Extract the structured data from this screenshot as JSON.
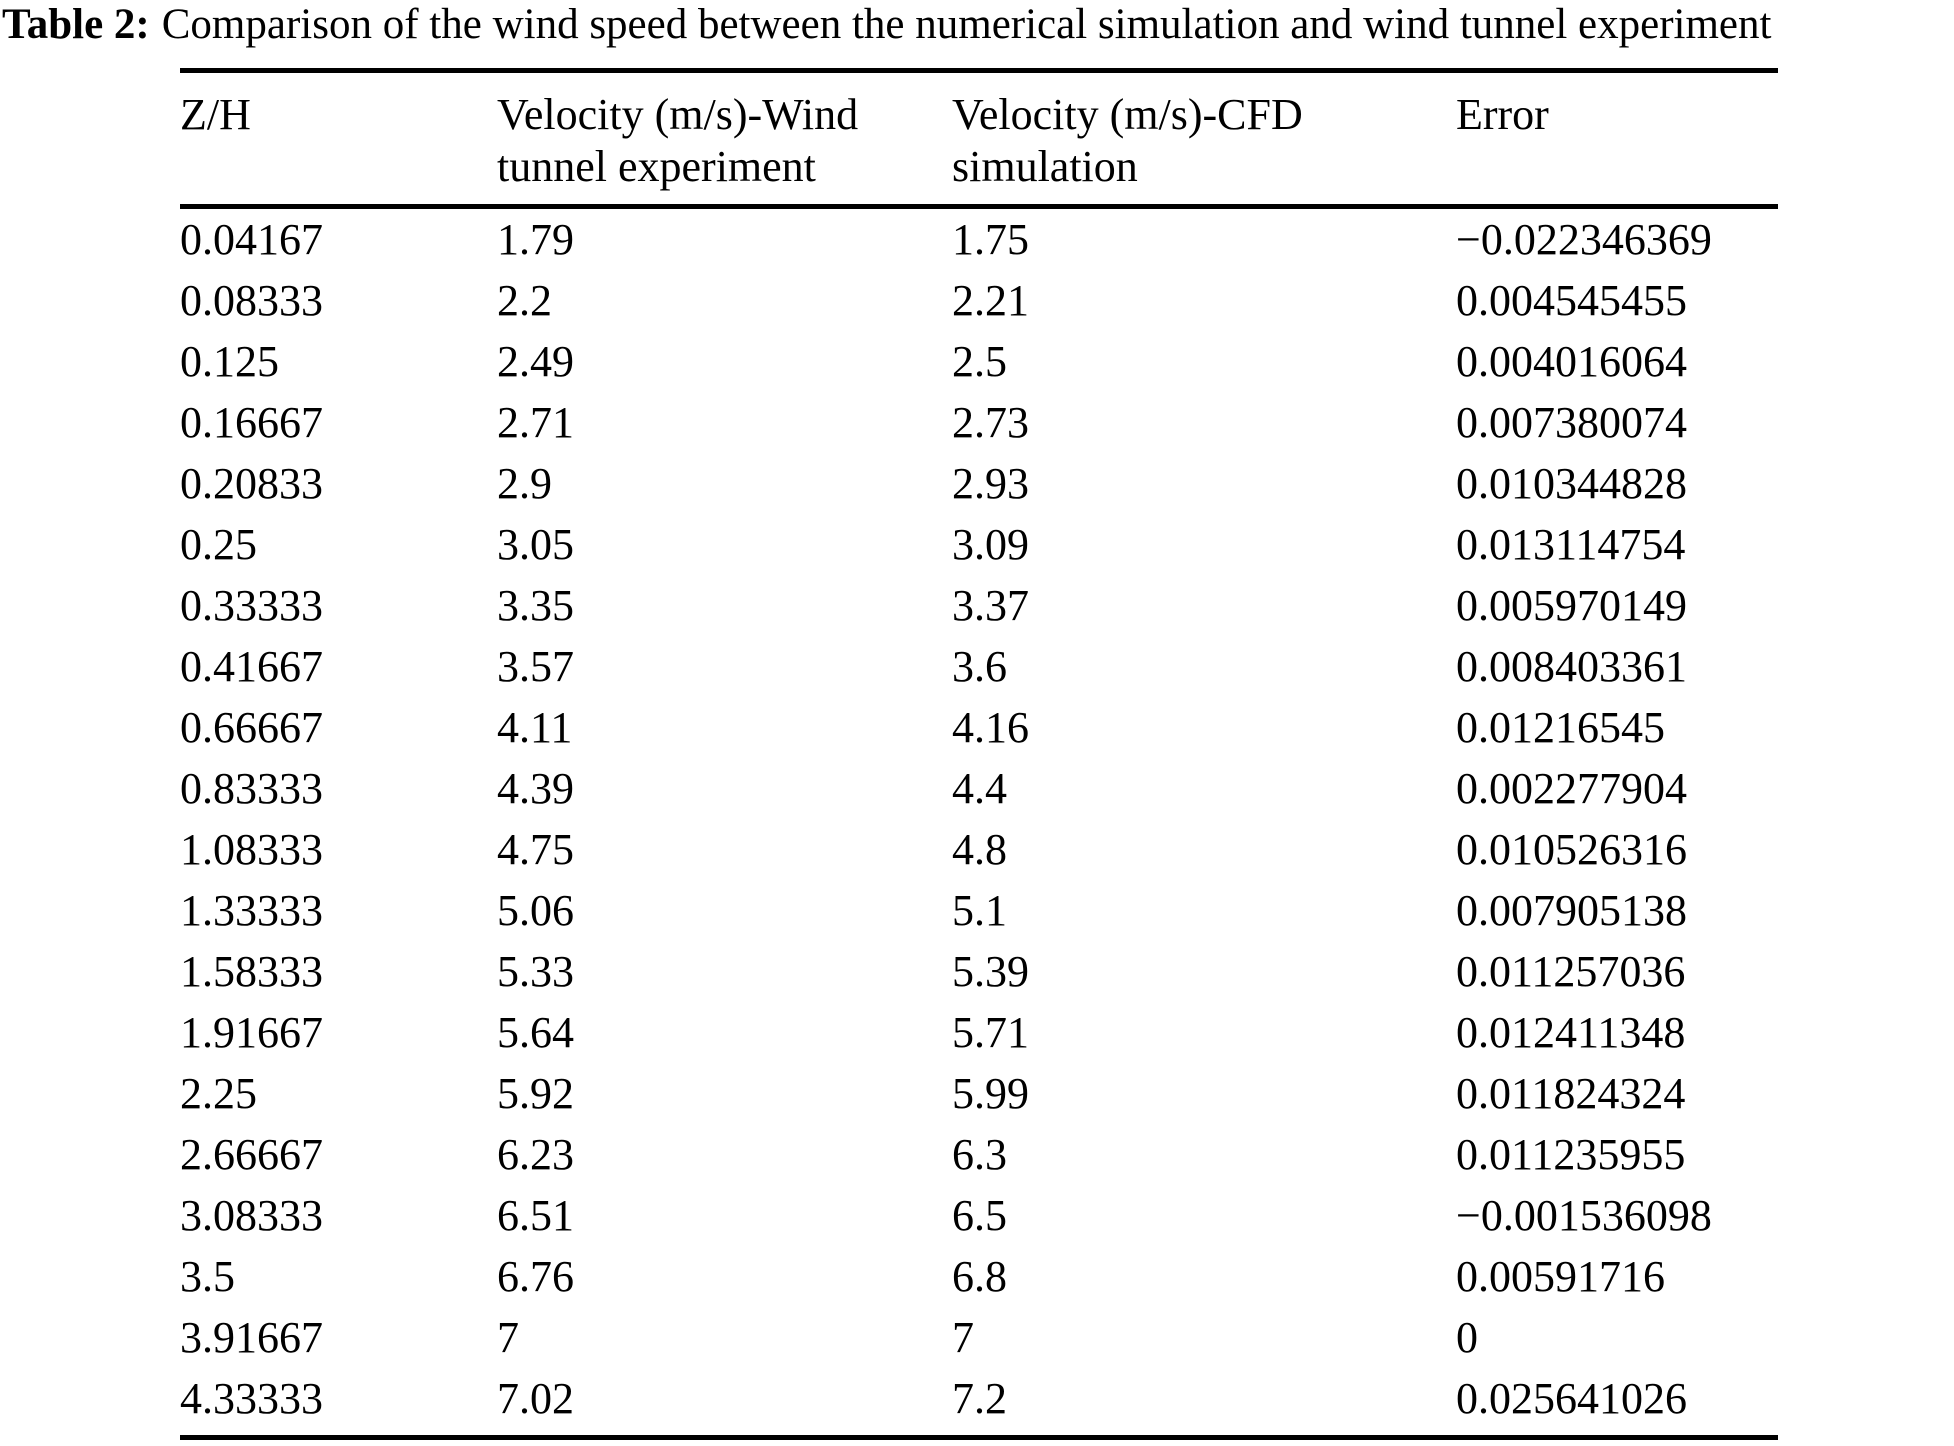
{
  "caption": {
    "label": "Table 2:",
    "text": "Comparison of the wind speed between the numerical simulation and wind tunnel experiment"
  },
  "table": {
    "columns": [
      "Z/H",
      "Velocity (m/s)-Wind\ntunnel experiment",
      "Velocity (m/s)-CFD\nsimulation",
      "Error"
    ],
    "rows": [
      [
        "0.04167",
        "1.79",
        "1.75",
        "−0.022346369"
      ],
      [
        "0.08333",
        "2.2",
        "2.21",
        "0.004545455"
      ],
      [
        "0.125",
        "2.49",
        "2.5",
        "0.004016064"
      ],
      [
        "0.16667",
        "2.71",
        "2.73",
        "0.007380074"
      ],
      [
        "0.20833",
        "2.9",
        "2.93",
        "0.010344828"
      ],
      [
        "0.25",
        "3.05",
        "3.09",
        "0.013114754"
      ],
      [
        "0.33333",
        "3.35",
        "3.37",
        "0.005970149"
      ],
      [
        "0.41667",
        "3.57",
        "3.6",
        "0.008403361"
      ],
      [
        "0.66667",
        "4.11",
        "4.16",
        "0.01216545"
      ],
      [
        "0.83333",
        "4.39",
        "4.4",
        "0.002277904"
      ],
      [
        "1.08333",
        "4.75",
        "4.8",
        "0.010526316"
      ],
      [
        "1.33333",
        "5.06",
        "5.1",
        "0.007905138"
      ],
      [
        "1.58333",
        "5.33",
        "5.39",
        "0.011257036"
      ],
      [
        "1.91667",
        "5.64",
        "5.71",
        "0.012411348"
      ],
      [
        "2.25",
        "5.92",
        "5.99",
        "0.011824324"
      ],
      [
        "2.66667",
        "6.23",
        "6.3",
        "0.011235955"
      ],
      [
        "3.08333",
        "6.51",
        "6.5",
        "−0.001536098"
      ],
      [
        "3.5",
        "6.76",
        "6.8",
        "0.00591716"
      ],
      [
        "3.91667",
        "7",
        "7",
        "0"
      ],
      [
        "4.33333",
        "7.02",
        "7.2",
        "0.025641026"
      ]
    ]
  }
}
